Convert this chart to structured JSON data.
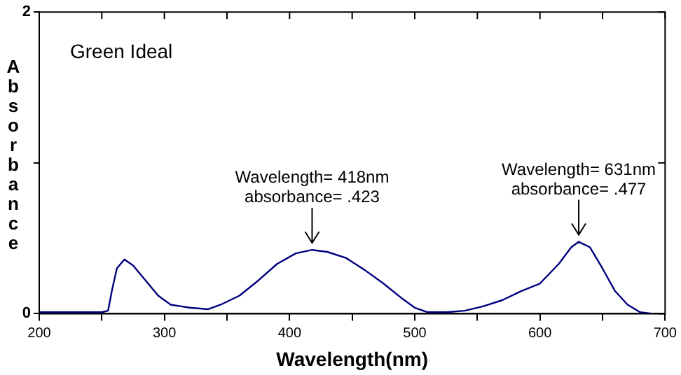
{
  "chart_data": {
    "type": "line",
    "title": "Green Ideal",
    "xlabel": "Wavelength(nm)",
    "ylabel": "Absorbance",
    "x": [
      200,
      210,
      220,
      230,
      240,
      250,
      255,
      258,
      262,
      268,
      275,
      285,
      295,
      305,
      320,
      335,
      345,
      360,
      375,
      390,
      405,
      418,
      430,
      445,
      460,
      475,
      490,
      500,
      510,
      525,
      540,
      555,
      570,
      585,
      600,
      615,
      625,
      631,
      640,
      650,
      660,
      670,
      680,
      690
    ],
    "series": [
      {
        "color": "#000080",
        "values": [
          0.01,
          0.01,
          0.01,
          0.01,
          0.01,
          0.01,
          0.02,
          0.15,
          0.3,
          0.36,
          0.32,
          0.22,
          0.12,
          0.06,
          0.04,
          0.03,
          0.06,
          0.12,
          0.22,
          0.33,
          0.4,
          0.423,
          0.41,
          0.37,
          0.29,
          0.2,
          0.1,
          0.04,
          0.01,
          0.01,
          0.02,
          0.05,
          0.09,
          0.15,
          0.2,
          0.33,
          0.44,
          0.477,
          0.44,
          0.3,
          0.15,
          0.06,
          0.01,
          0.0
        ]
      }
    ],
    "xlim": [
      200,
      700
    ],
    "xticks": [
      200,
      {
        "value": 250,
        "label": null
      },
      300,
      {
        "value": 350,
        "label": null
      },
      400,
      {
        "value": 450,
        "label": null
      },
      500,
      {
        "value": 550,
        "label": null
      },
      600,
      {
        "value": 650,
        "label": null
      },
      700
    ],
    "ylim": [
      0,
      2
    ],
    "yticks": [
      0,
      {
        "value": 1,
        "label": null
      },
      2
    ],
    "grid": false,
    "legend": false,
    "marker": "none",
    "line_style": "solid",
    "annotations": [
      {
        "text": "Wavelength= 418nm\nabsorbance= .423",
        "x": 418,
        "y": 0.423
      },
      {
        "text": "Wavelength= 631nm\nabsorbance= .477",
        "x": 631,
        "y": 0.477
      }
    ]
  }
}
